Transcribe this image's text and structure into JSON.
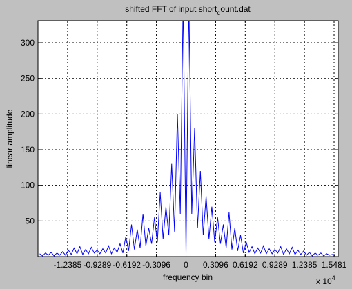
{
  "chart_data": {
    "type": "line",
    "title_parts": [
      "shifted FFT of input short",
      "c",
      "ount.dat"
    ],
    "xlabel": "frequency bin",
    "ylabel": "linear amplitude",
    "x_exponent": {
      "base": "x 10",
      "power": "4"
    },
    "xlim": [
      -15482,
      15913
    ],
    "ylim": [
      0,
      331
    ],
    "xticks": [
      {
        "value": -12385,
        "label": "-1.2385"
      },
      {
        "value": -9289,
        "label": "-0.9289"
      },
      {
        "value": -6192,
        "label": "-0.6192"
      },
      {
        "value": -3096,
        "label": "-0.3096"
      },
      0,
      {
        "value": 3096,
        "label": "0.3096"
      },
      {
        "value": 6192,
        "label": "0.6192"
      },
      {
        "value": 9289,
        "label": "0.9289"
      },
      {
        "value": 12385,
        "label": "1.2385"
      },
      {
        "value": 15481,
        "label": "1.5481"
      }
    ],
    "yticks": [
      50,
      100,
      150,
      200,
      250,
      300
    ],
    "grid": true,
    "x": [
      -15300,
      -15000,
      -14700,
      -14400,
      -14100,
      -13800,
      -13500,
      -13200,
      -12900,
      -12600,
      -12300,
      -12000,
      -11700,
      -11400,
      -11100,
      -10800,
      -10500,
      -10200,
      -9900,
      -9600,
      -9300,
      -9000,
      -8700,
      -8400,
      -8100,
      -7800,
      -7500,
      -7200,
      -6900,
      -6600,
      -6300,
      -6000,
      -5700,
      -5400,
      -5100,
      -4800,
      -4500,
      -4200,
      -3900,
      -3600,
      -3300,
      -3000,
      -2700,
      -2400,
      -2100,
      -1800,
      -1500,
      -1200,
      -900,
      -600,
      -300,
      0,
      300,
      600,
      900,
      1200,
      1500,
      1800,
      2100,
      2400,
      2700,
      3000,
      3300,
      3600,
      3900,
      4200,
      4500,
      4800,
      5100,
      5400,
      5700,
      6000,
      6300,
      6600,
      6900,
      7200,
      7500,
      7800,
      8100,
      8400,
      8700,
      9000,
      9300,
      9600,
      9900,
      10200,
      10500,
      10800,
      11100,
      11400,
      11700,
      12000,
      12300,
      12600,
      12900,
      13200,
      13500,
      13800,
      14100,
      14400,
      14700,
      15000,
      15300,
      15600
    ],
    "series": [
      {
        "name": "spectrum",
        "color": "#0000ff",
        "values": [
          4,
          1,
          5,
          2,
          6,
          1,
          5,
          2,
          7,
          2,
          9,
          3,
          12,
          4,
          14,
          3,
          10,
          4,
          13,
          5,
          9,
          4,
          11,
          5,
          15,
          4,
          12,
          6,
          18,
          5,
          28,
          8,
          45,
          10,
          38,
          12,
          60,
          15,
          40,
          18,
          55,
          20,
          90,
          25,
          70,
          30,
          130,
          35,
          200,
          60,
          360,
          5,
          360,
          60,
          180,
          40,
          120,
          30,
          85,
          25,
          70,
          20,
          55,
          18,
          45,
          12,
          62,
          10,
          40,
          8,
          30,
          5,
          20,
          6,
          14,
          4,
          12,
          5,
          15,
          4,
          11,
          4,
          10,
          5,
          14,
          3,
          11,
          4,
          13,
          3,
          9,
          3,
          8,
          2,
          6,
          1,
          5,
          2,
          5,
          1,
          4,
          2,
          3,
          1
        ]
      }
    ]
  }
}
